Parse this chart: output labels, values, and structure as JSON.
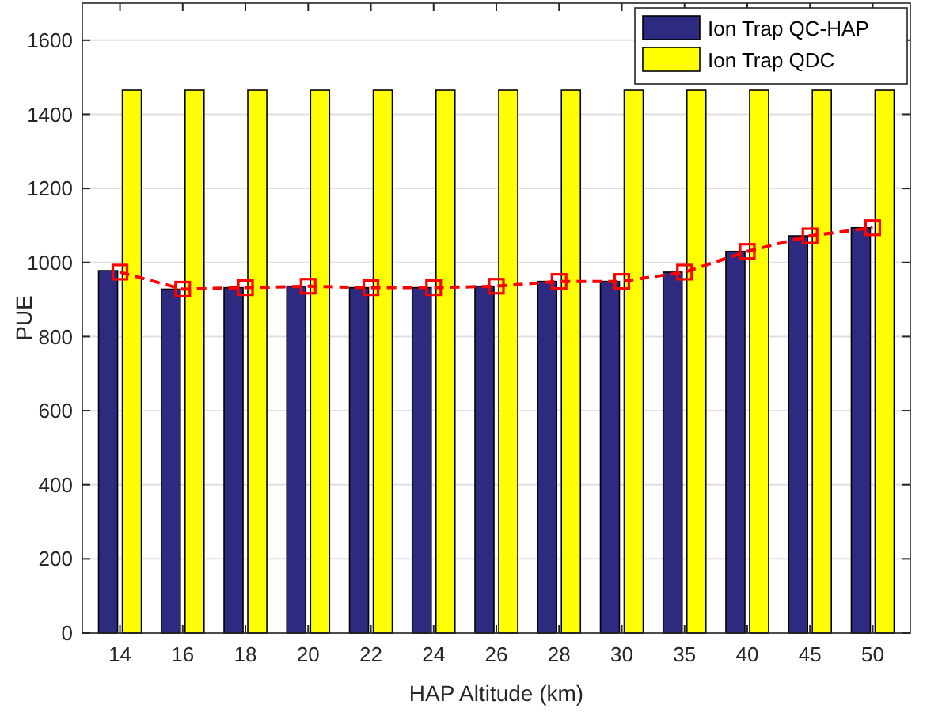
{
  "chart_data": {
    "type": "bar",
    "xlabel": "HAP Altitude (km)",
    "ylabel": "PUE",
    "categories": [
      "14",
      "16",
      "18",
      "20",
      "22",
      "24",
      "26",
      "28",
      "30",
      "35",
      "40",
      "45",
      "50"
    ],
    "series": [
      {
        "name": "Ion Trap QC-HAP",
        "color": "#2e2a7f",
        "values": [
          978,
          928,
          932,
          936,
          932,
          932,
          936,
          949,
          949,
          974,
          1030,
          1072,
          1094
        ]
      },
      {
        "name": "Ion Trap QDC",
        "color": "#ffff00",
        "values": [
          1465,
          1465,
          1465,
          1465,
          1465,
          1465,
          1465,
          1465,
          1465,
          1465,
          1465,
          1465,
          1465
        ]
      },
      {
        "type": "line",
        "color": "#ff0000",
        "marker": "square",
        "line_style": "dashed",
        "values": [
          974,
          928,
          932,
          936,
          932,
          932,
          936,
          949,
          949,
          974,
          1030,
          1072,
          1094
        ]
      }
    ],
    "ylim": [
      0,
      1700
    ],
    "yticks": [
      0,
      200,
      400,
      600,
      800,
      1000,
      1200,
      1400,
      1600
    ],
    "grid": "y",
    "legend": "top right"
  }
}
